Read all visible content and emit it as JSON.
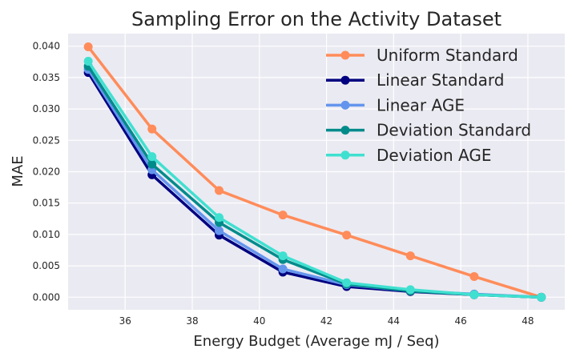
{
  "chart_data": {
    "type": "line",
    "title": "Sampling Error on the Activity Dataset",
    "xlabel": "Energy Budget (Average mJ / Seq)",
    "ylabel": "MAE",
    "x": [
      34.9,
      36.8,
      38.8,
      40.7,
      42.6,
      44.5,
      46.4,
      48.4
    ],
    "xlim": [
      34.3,
      49.1
    ],
    "ylim": [
      -0.002,
      0.042
    ],
    "xticks": [
      36,
      38,
      40,
      42,
      44,
      46,
      48
    ],
    "yticks": [
      0.0,
      0.005,
      0.01,
      0.015,
      0.02,
      0.025,
      0.03,
      0.035,
      0.04
    ],
    "xtick_labels": [
      "36",
      "38",
      "40",
      "42",
      "44",
      "46",
      "48"
    ],
    "ytick_labels": [
      "0.000",
      "0.005",
      "0.010",
      "0.015",
      "0.020",
      "0.025",
      "0.030",
      "0.035",
      "0.040"
    ],
    "grid": true,
    "legend_position": "top-right",
    "series": [
      {
        "name": "Uniform Standard",
        "color": "#ff8c5a",
        "values": [
          0.0399,
          0.0268,
          0.017,
          0.0131,
          0.0099,
          0.0066,
          0.0033,
          0.0
        ]
      },
      {
        "name": "Linear Standard",
        "color": "#000080",
        "values": [
          0.0358,
          0.0195,
          0.0099,
          0.004,
          0.0017,
          0.0009,
          0.0004,
          0.0
        ]
      },
      {
        "name": "Linear AGE",
        "color": "#6495ed",
        "values": [
          0.0363,
          0.0203,
          0.0106,
          0.0045,
          0.002,
          0.001,
          0.0005,
          0.0
        ]
      },
      {
        "name": "Deviation Standard",
        "color": "#008b8b",
        "values": [
          0.0368,
          0.0212,
          0.0119,
          0.006,
          0.0021,
          0.001,
          0.0004,
          0.0
        ]
      },
      {
        "name": "Deviation AGE",
        "color": "#40e0d0",
        "values": [
          0.0376,
          0.0224,
          0.0127,
          0.0066,
          0.0023,
          0.0012,
          0.0004,
          0.0
        ]
      }
    ]
  }
}
